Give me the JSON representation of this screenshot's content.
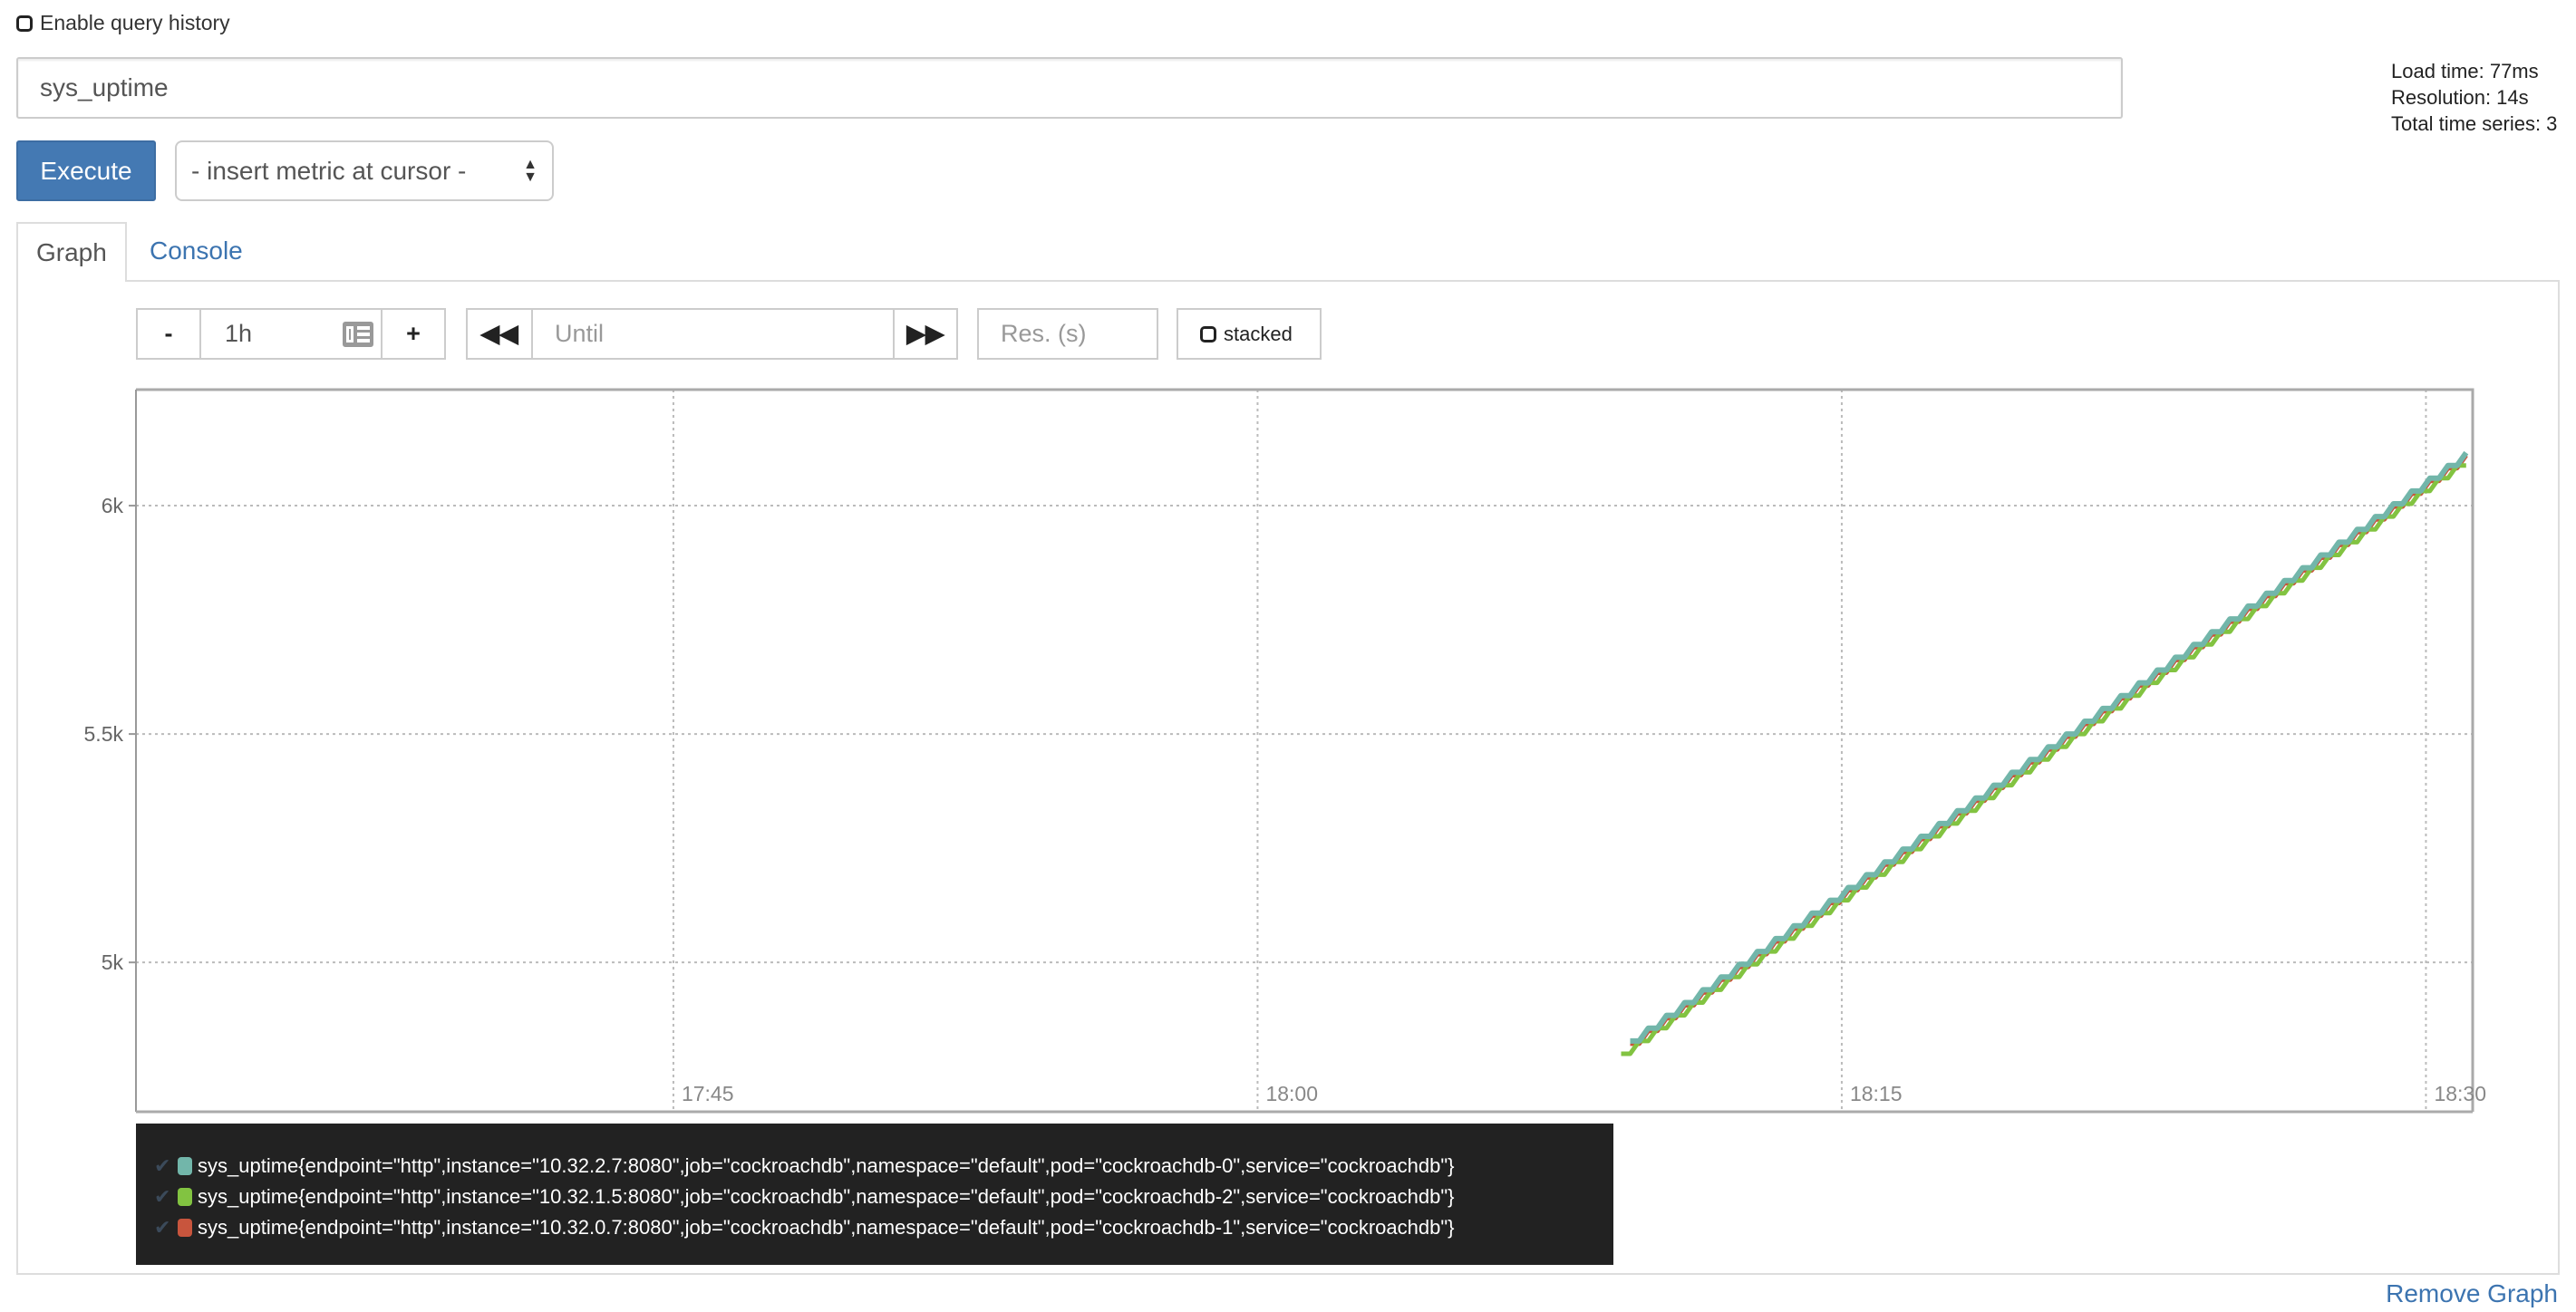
{
  "query_history": {
    "label": "Enable query history",
    "checked": false
  },
  "expression": {
    "value": "sys_uptime"
  },
  "execute_label": "Execute",
  "metric_select": {
    "selected": "- insert metric at cursor -"
  },
  "stats": {
    "load_time": "Load time: 77ms",
    "resolution": "Resolution: 14s",
    "total_series": "Total time series: 3"
  },
  "tabs": [
    {
      "label": "Graph",
      "active": true
    },
    {
      "label": "Console",
      "active": false
    }
  ],
  "controls": {
    "minus": "-",
    "range": "1h",
    "plus": "+",
    "until_placeholder": "Until",
    "res_placeholder": "Res. (s)",
    "stacked_label": "stacked",
    "stacked": false
  },
  "remove_graph": "Remove Graph",
  "chart_data": {
    "type": "line",
    "xlim": [
      "17:31:12",
      "18:31:12"
    ],
    "ylim": [
      4673,
      6254
    ],
    "grid": true,
    "x_ticks": [
      "17:45",
      "18:00",
      "18:15",
      "18:30"
    ],
    "y_ticks": [
      {
        "value": 5000,
        "label": "5k"
      },
      {
        "value": 5500,
        "label": "5.5k"
      },
      {
        "value": 6000,
        "label": "6k"
      }
    ],
    "legend_placement": "bottom",
    "x": [
      "18:09:20",
      "18:09:34",
      "18:09:48",
      "18:10:02",
      "18:10:16",
      "18:10:30",
      "18:10:44",
      "18:10:58",
      "18:11:12",
      "18:11:26",
      "18:11:40",
      "18:11:54",
      "18:12:08",
      "18:12:22",
      "18:12:36",
      "18:12:50",
      "18:13:04",
      "18:13:18",
      "18:13:32",
      "18:13:46",
      "18:14:00",
      "18:14:14",
      "18:14:28",
      "18:14:42",
      "18:14:56",
      "18:15:10",
      "18:15:24",
      "18:15:38",
      "18:15:52",
      "18:16:06",
      "18:16:20",
      "18:16:34",
      "18:16:48",
      "18:17:02",
      "18:17:16",
      "18:17:30",
      "18:17:44",
      "18:17:58",
      "18:18:12",
      "18:18:26",
      "18:18:40",
      "18:18:54",
      "18:19:08",
      "18:19:22",
      "18:19:36",
      "18:19:50",
      "18:20:04",
      "18:20:18",
      "18:20:32",
      "18:20:46",
      "18:21:00",
      "18:21:14",
      "18:21:28",
      "18:21:42",
      "18:21:56",
      "18:22:10",
      "18:22:24",
      "18:22:38",
      "18:22:52",
      "18:23:06",
      "18:23:20",
      "18:23:34",
      "18:23:48",
      "18:24:02",
      "18:24:16",
      "18:24:30",
      "18:24:44",
      "18:24:58",
      "18:25:12",
      "18:25:26",
      "18:25:40",
      "18:25:54",
      "18:26:08",
      "18:26:22",
      "18:26:36",
      "18:26:50",
      "18:27:04",
      "18:27:18",
      "18:27:32",
      "18:27:46",
      "18:28:00",
      "18:28:14",
      "18:28:28",
      "18:28:42",
      "18:28:56",
      "18:29:10",
      "18:29:24",
      "18:29:38",
      "18:29:52",
      "18:30:06",
      "18:30:20",
      "18:30:34",
      "18:30:48",
      "18:31:02"
    ],
    "series": [
      {
        "name": "sys_uptime{endpoint=\"http\",instance=\"10.32.2.7:8080\",job=\"cockroachdb\",namespace=\"default\",pod=\"cockroachdb-0\",service=\"cockroachdb\"}",
        "color": "#72b6aa",
        "values": [
          null,
          4828,
          4828,
          4856,
          4856,
          4884,
          4884,
          4912,
          4912,
          4940,
          4940,
          4968,
          4968,
          4996,
          4996,
          5024,
          5024,
          5052,
          5052,
          5080,
          5080,
          5108,
          5108,
          5136,
          5136,
          5164,
          5164,
          5192,
          5192,
          5220,
          5220,
          5248,
          5248,
          5276,
          5276,
          5304,
          5304,
          5332,
          5332,
          5360,
          5360,
          5388,
          5388,
          5416,
          5416,
          5444,
          5444,
          5472,
          5472,
          5500,
          5500,
          5528,
          5528,
          5556,
          5556,
          5584,
          5584,
          5612,
          5612,
          5640,
          5640,
          5668,
          5668,
          5696,
          5696,
          5724,
          5724,
          5752,
          5752,
          5780,
          5780,
          5808,
          5808,
          5836,
          5836,
          5864,
          5864,
          5892,
          5892,
          5920,
          5920,
          5948,
          5948,
          5976,
          5976,
          6004,
          6004,
          6032,
          6032,
          6060,
          6060,
          6088,
          6088,
          6116
        ]
      },
      {
        "name": "sys_uptime{endpoint=\"http\",instance=\"10.32.1.5:8080\",job=\"cockroachdb\",namespace=\"default\",pod=\"cockroachdb-2\",service=\"cockroachdb\"}",
        "color": "#82c341",
        "values": [
          4800,
          4800,
          4828,
          4828,
          4856,
          4856,
          4884,
          4884,
          4912,
          4912,
          4940,
          4940,
          4968,
          4968,
          4996,
          4996,
          5024,
          5024,
          5052,
          5052,
          5080,
          5080,
          5108,
          5108,
          5136,
          5136,
          5164,
          5164,
          5192,
          5192,
          5220,
          5220,
          5248,
          5248,
          5276,
          5276,
          5304,
          5304,
          5332,
          5332,
          5360,
          5360,
          5388,
          5388,
          5416,
          5416,
          5444,
          5444,
          5472,
          5472,
          5500,
          5500,
          5528,
          5528,
          5556,
          5556,
          5584,
          5584,
          5612,
          5612,
          5640,
          5640,
          5668,
          5668,
          5696,
          5696,
          5724,
          5724,
          5752,
          5752,
          5780,
          5780,
          5808,
          5808,
          5836,
          5836,
          5864,
          5864,
          5892,
          5892,
          5920,
          5920,
          5948,
          5948,
          5976,
          5976,
          6004,
          6004,
          6032,
          6032,
          6060,
          6060,
          6088,
          6088
        ]
      },
      {
        "name": "sys_uptime{endpoint=\"http\",instance=\"10.32.0.7:8080\",job=\"cockroachdb\",namespace=\"default\",pod=\"cockroachdb-1\",service=\"cockroachdb\"}",
        "color": "#c8553d",
        "values": [
          null,
          4822,
          4822,
          4850,
          4850,
          4878,
          4878,
          4906,
          4906,
          4934,
          4934,
          4962,
          4962,
          4990,
          4990,
          5018,
          5018,
          5046,
          5046,
          5074,
          5074,
          5102,
          5102,
          5130,
          5130,
          5158,
          5158,
          5186,
          5186,
          5214,
          5214,
          5242,
          5242,
          5270,
          5270,
          5298,
          5298,
          5326,
          5326,
          5354,
          5354,
          5382,
          5382,
          5410,
          5410,
          5438,
          5438,
          5466,
          5466,
          5494,
          5494,
          5522,
          5522,
          5550,
          5550,
          5578,
          5578,
          5606,
          5606,
          5634,
          5634,
          5662,
          5662,
          5690,
          5690,
          5718,
          5718,
          5746,
          5746,
          5774,
          5774,
          5802,
          5802,
          5830,
          5830,
          5858,
          5858,
          5886,
          5886,
          5914,
          5914,
          5942,
          5942,
          5970,
          5970,
          5998,
          5998,
          6026,
          6026,
          6054,
          6054,
          6082,
          6082,
          6110
        ]
      }
    ]
  }
}
